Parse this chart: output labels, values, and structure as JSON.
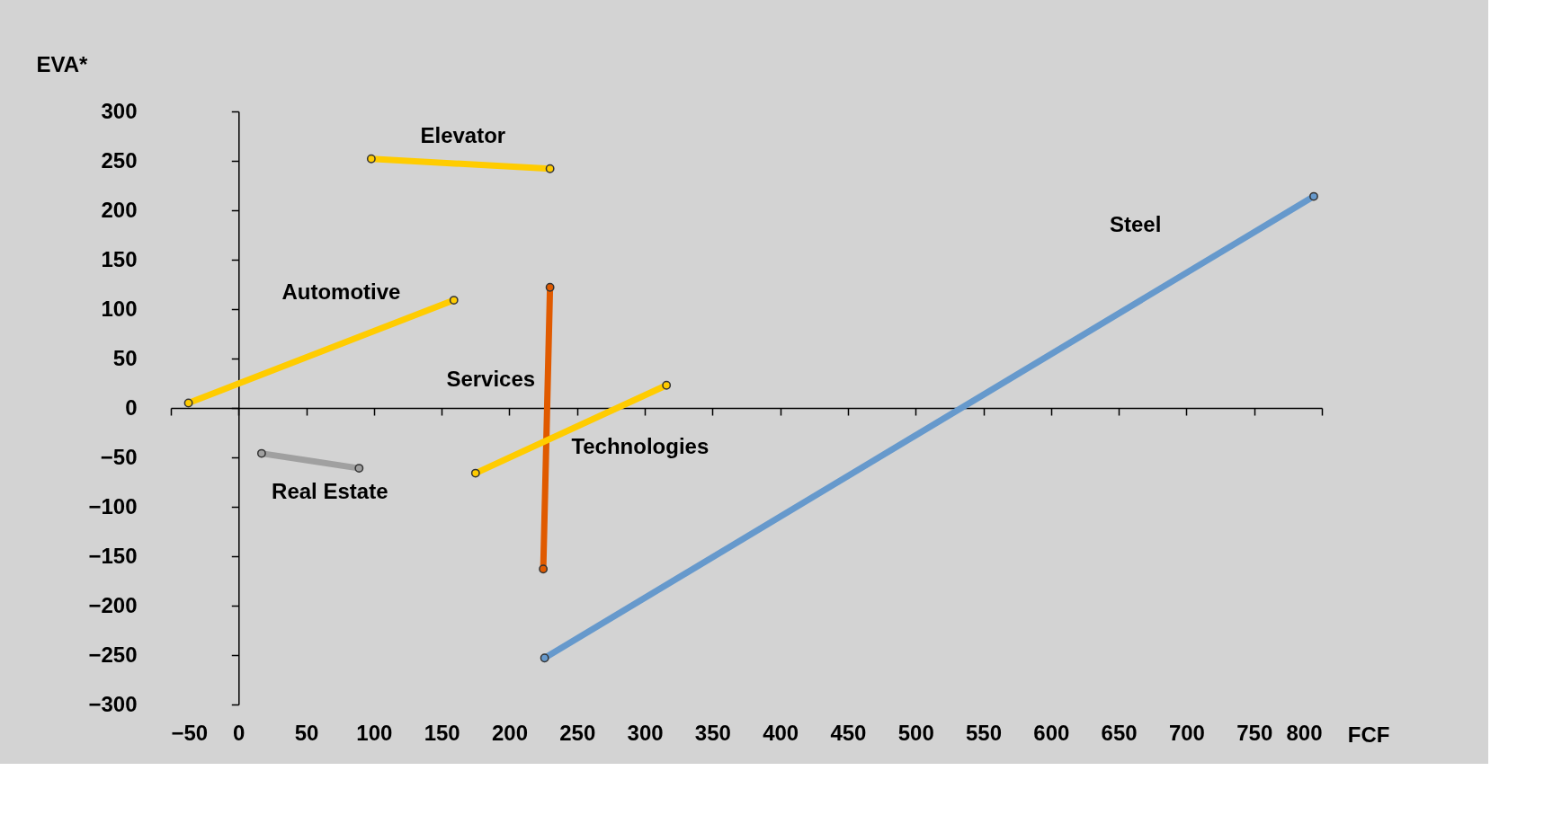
{
  "chart_data": {
    "type": "line",
    "xlabel": "FCF",
    "ylabel": "EVA*",
    "xlim": [
      -50,
      800
    ],
    "ylim": [
      -300,
      300
    ],
    "xticks": [
      -50,
      0,
      50,
      100,
      150,
      200,
      250,
      300,
      350,
      400,
      450,
      500,
      550,
      600,
      650,
      700,
      750,
      800
    ],
    "yticks": [
      -300,
      -250,
      -200,
      -150,
      -100,
      -50,
      0,
      50,
      100,
      150,
      200,
      250,
      300
    ],
    "marker": "circle",
    "line_style": "solid",
    "series": [
      {
        "name": "Elevator",
        "color": "#ffcc00",
        "x": [
          230,
          98
        ],
        "values": [
          242,
          252
        ]
      },
      {
        "name": "Automotive",
        "color": "#ffcc00",
        "x": [
          -37,
          159
        ],
        "values": [
          5,
          109
        ]
      },
      {
        "name": "Services",
        "color": "#e05a00",
        "x": [
          225,
          230
        ],
        "values": [
          -163,
          122
        ]
      },
      {
        "name": "Technologies",
        "color": "#ffcc00",
        "x": [
          175,
          316
        ],
        "values": [
          -66,
          23
        ]
      },
      {
        "name": "Real Estate",
        "color": "#a0a0a0",
        "x": [
          89,
          17
        ],
        "values": [
          -61,
          -46
        ]
      },
      {
        "name": "Steel",
        "color": "#6699cc",
        "x": [
          226,
          794
        ],
        "values": [
          -253,
          214
        ]
      }
    ]
  }
}
